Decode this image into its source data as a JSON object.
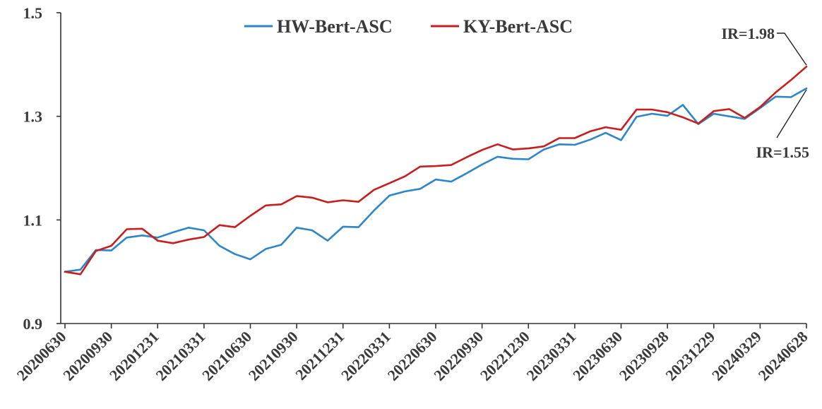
{
  "chart_data": {
    "type": "line",
    "title": "",
    "xlabel": "",
    "ylabel": "",
    "ylim": [
      0.9,
      1.5
    ],
    "yticks": [
      "0.9",
      "1.1",
      "1.3",
      "1.5"
    ],
    "x_tick_labels": [
      "20200630",
      "20200930",
      "20201231",
      "20210331",
      "20210630",
      "20210930",
      "20211231",
      "20220331",
      "20220630",
      "20220930",
      "20221230",
      "20230331",
      "20230630",
      "20230928",
      "20231229",
      "20240329",
      "20240628"
    ],
    "grid": false,
    "legend_position": "top",
    "series": [
      {
        "name": "HW-Bert-ASC",
        "color": "#2e86c8",
        "values": [
          1.0,
          1.004,
          1.042,
          1.041,
          1.066,
          1.07,
          1.066,
          1.076,
          1.085,
          1.08,
          1.05,
          1.034,
          1.024,
          1.044,
          1.052,
          1.085,
          1.08,
          1.06,
          1.087,
          1.086,
          1.118,
          1.147,
          1.155,
          1.16,
          1.178,
          1.174,
          1.19,
          1.207,
          1.222,
          1.218,
          1.217,
          1.236,
          1.246,
          1.245,
          1.255,
          1.268,
          1.254,
          1.299,
          1.305,
          1.301,
          1.322,
          1.285,
          1.305,
          1.3,
          1.295,
          1.316,
          1.338,
          1.337,
          1.354
        ]
      },
      {
        "name": "KY-Bert-ASC",
        "color": "#c81e1e",
        "values": [
          1.0,
          0.995,
          1.04,
          1.05,
          1.082,
          1.083,
          1.06,
          1.055,
          1.062,
          1.067,
          1.09,
          1.086,
          1.108,
          1.128,
          1.13,
          1.146,
          1.143,
          1.134,
          1.138,
          1.135,
          1.158,
          1.171,
          1.184,
          1.203,
          1.204,
          1.206,
          1.221,
          1.235,
          1.246,
          1.236,
          1.238,
          1.242,
          1.258,
          1.258,
          1.271,
          1.279,
          1.274,
          1.313,
          1.313,
          1.308,
          1.298,
          1.286,
          1.31,
          1.314,
          1.297,
          1.318,
          1.346,
          1.37,
          1.396
        ]
      }
    ],
    "annotations": [
      {
        "text": "IR=1.98",
        "series": "KY-Bert-ASC",
        "point_index": 48
      },
      {
        "text": "IR=1.55",
        "series": "HW-Bert-ASC",
        "point_index": 48
      }
    ]
  }
}
